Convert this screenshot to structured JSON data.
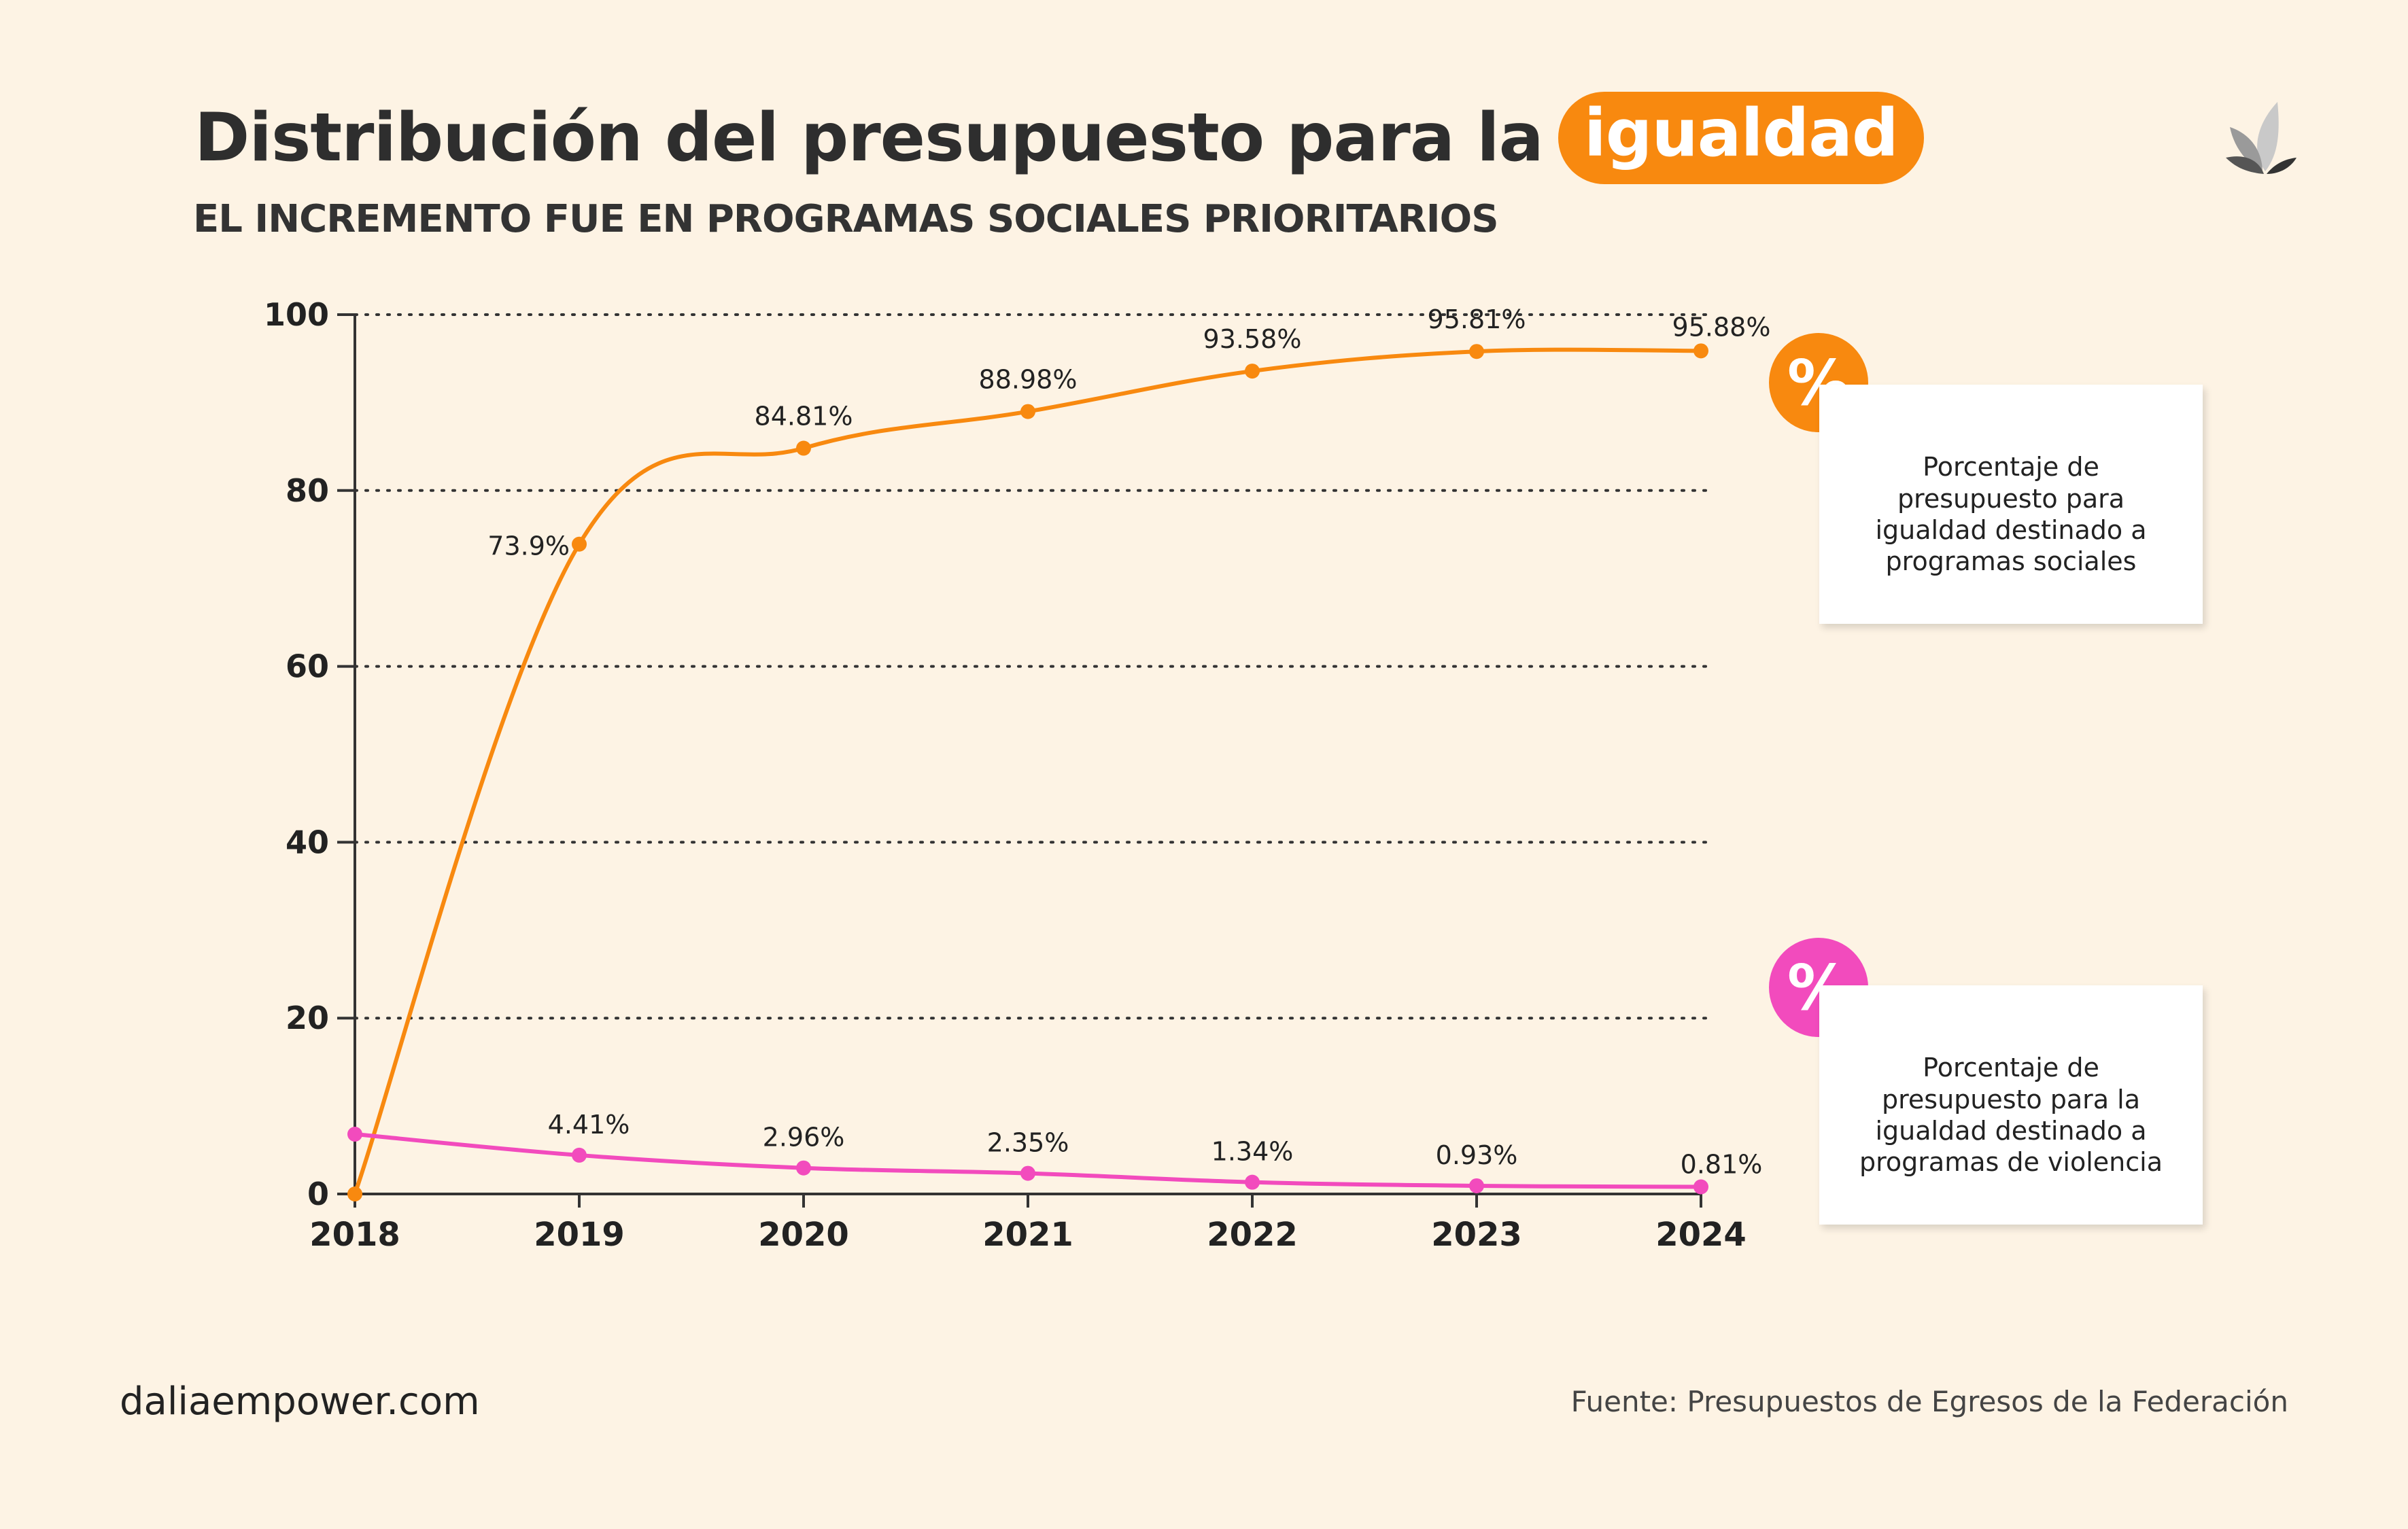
{
  "header": {
    "title_main": "Distribución del presupuesto para la",
    "title_highlight": "igualdad",
    "subtitle": "EL INCREMENTO FUE EN PROGRAMAS SOCIALES PRIORITARIOS",
    "logo_icon": "dalia-leaves-logo-icon"
  },
  "legend": [
    {
      "badge": "%",
      "color": "#f8890f",
      "text": "Porcentaje de presupuesto para igualdad destinado a programas sociales"
    },
    {
      "badge": "%",
      "color": "#f24bbd",
      "text": "Porcentaje de presupuesto para la igualdad destinado a programas de violencia"
    }
  ],
  "footer": {
    "website": "daliaempower.com",
    "source": "Fuente: Presupuestos de Egresos de la Federación"
  },
  "chart_data": {
    "type": "line",
    "x": [
      "2018",
      "2019",
      "2020",
      "2021",
      "2022",
      "2023",
      "2024"
    ],
    "ylim": [
      0,
      100
    ],
    "yticks": [
      0,
      20,
      40,
      60,
      80,
      100
    ],
    "grid": "horizontal dotted",
    "series": [
      {
        "color": "#f8890f",
        "values": [
          0,
          73.9,
          84.81,
          88.98,
          93.58,
          95.81,
          95.88
        ],
        "labels": [
          "",
          "73.9%",
          "84.81%",
          "88.98%",
          "93.58%",
          "95.81%",
          "95.88%"
        ]
      },
      {
        "color": "#f24bbd",
        "values": [
          6.8,
          4.41,
          2.96,
          2.35,
          1.34,
          0.93,
          0.81
        ],
        "labels": [
          "",
          "4.41%",
          "2.96%",
          "2.35%",
          "1.34%",
          "0.93%",
          "0.81%"
        ]
      }
    ]
  }
}
